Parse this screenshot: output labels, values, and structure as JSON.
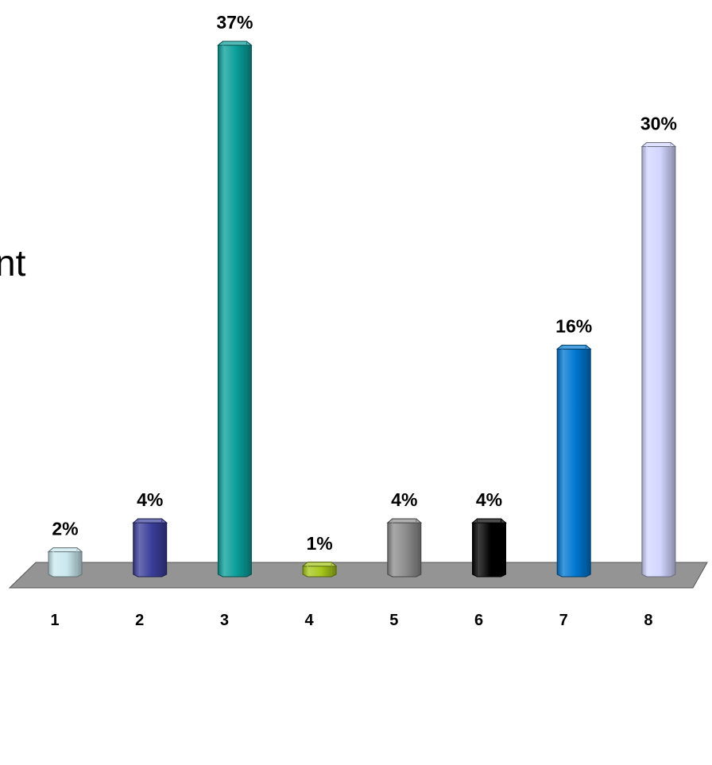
{
  "slide": {
    "left_text_fragment": "nt"
  },
  "chart_data": {
    "type": "bar",
    "categories": [
      "1",
      "2",
      "3",
      "4",
      "5",
      "6",
      "7",
      "8"
    ],
    "values": [
      2,
      4,
      37,
      1,
      4,
      4,
      16,
      30
    ],
    "data_labels": [
      "2%",
      "4%",
      "37%",
      "1%",
      "4%",
      "4%",
      "16%",
      "30%"
    ],
    "title": "",
    "xlabel": "",
    "ylabel": "",
    "ylim": [
      0,
      37
    ],
    "grid": false,
    "legend": "none",
    "colors": [
      "#c9e8ee",
      "#3a3e9a",
      "#0a9e9a",
      "#a6c71a",
      "#8c8c8c",
      "#000000",
      "#0077d0",
      "#d2d6ff"
    ],
    "floor_color": "#949494"
  }
}
